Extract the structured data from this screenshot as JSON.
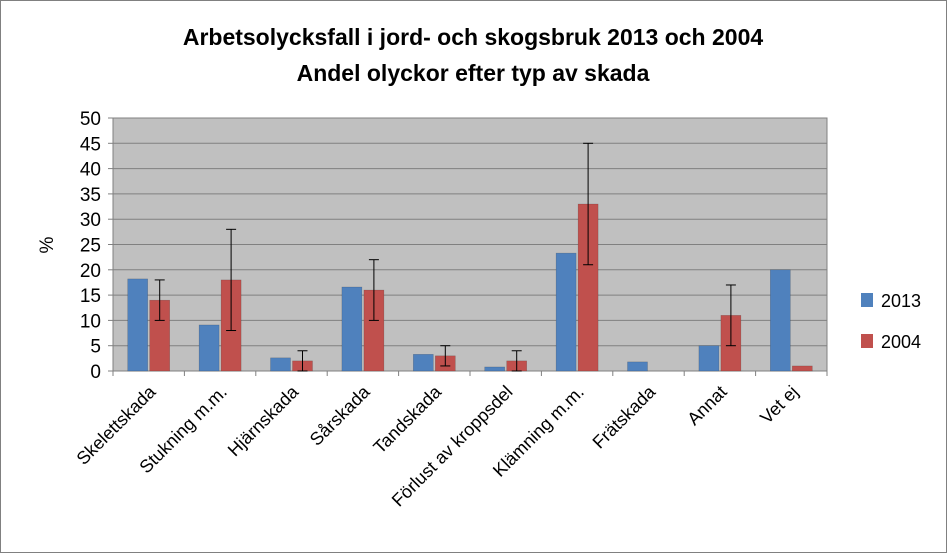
{
  "chart_data": {
    "type": "bar",
    "title": "Arbetsolycksfall i jord- och skogsbruk 2013 och 2004",
    "subtitle": "Andel olyckor efter typ av skada",
    "ylabel": "%",
    "xlabel": "",
    "ylim": [
      0,
      50
    ],
    "yticks": [
      0,
      5,
      10,
      15,
      20,
      25,
      30,
      35,
      40,
      45,
      50
    ],
    "grid": true,
    "legend_position": "right",
    "categories": [
      "Skelettskada",
      "Stukning m.m.",
      "Hjärnskada",
      "Sårskada",
      "Tandskada",
      "Förlust av kroppsdel",
      "Klämning m.m.",
      "Frätskada",
      "Annat",
      "Vet ej"
    ],
    "series": [
      {
        "name": "2013",
        "color": "#4f81bd",
        "values": [
          18.2,
          9.1,
          2.6,
          16.6,
          3.3,
          0.8,
          23.3,
          1.8,
          5.0,
          20.0
        ],
        "error": null
      },
      {
        "name": "2004",
        "color": "#c0504d",
        "values": [
          14,
          18,
          2,
          16,
          3,
          2,
          33,
          0,
          11,
          1
        ],
        "error": [
          [
            10,
            18
          ],
          [
            8,
            28
          ],
          [
            0,
            4
          ],
          [
            10,
            22
          ],
          [
            1,
            5
          ],
          [
            0,
            4
          ],
          [
            21,
            45
          ],
          null,
          [
            5,
            17
          ],
          null
        ]
      }
    ]
  }
}
